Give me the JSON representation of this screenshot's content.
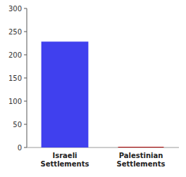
{
  "chart_data": {
    "type": "bar",
    "categories": [
      "Israeli\nSettlements",
      "Palestinian\nSettlements"
    ],
    "values": [
      227,
      0
    ],
    "colors": [
      "#4040ee",
      "#aa0000"
    ],
    "ylim": [
      0,
      300
    ],
    "yticks": [
      0,
      50,
      100,
      150,
      200,
      250,
      300
    ]
  }
}
